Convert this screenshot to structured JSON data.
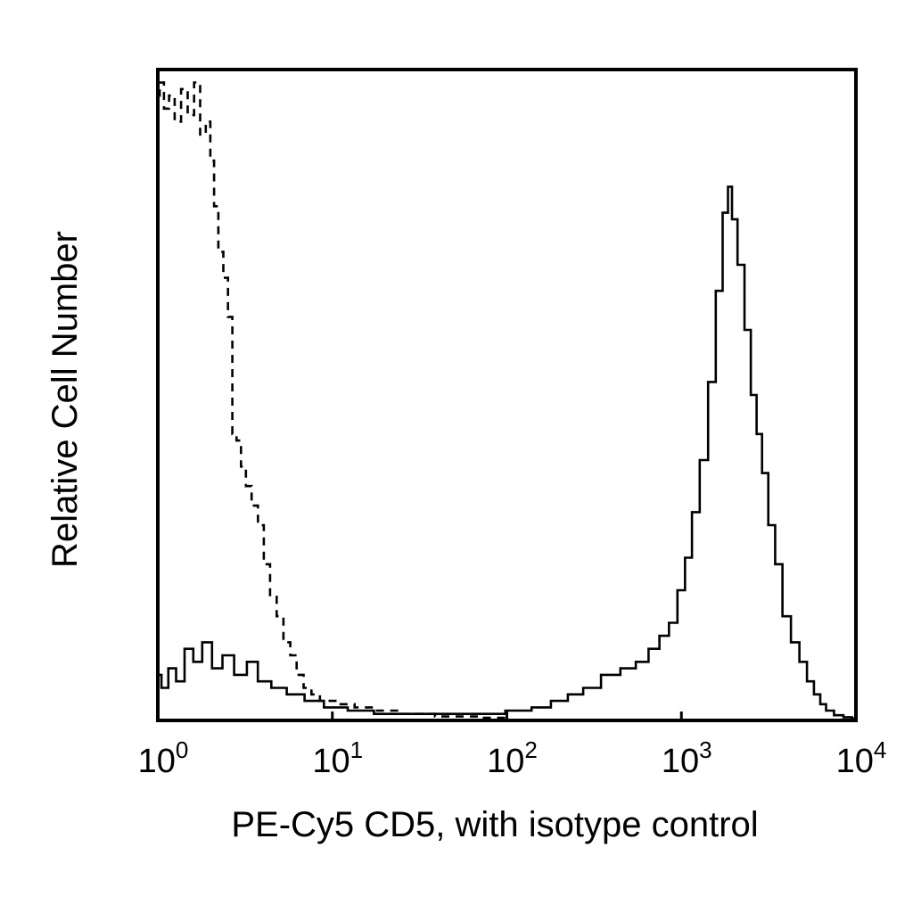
{
  "chart_data": {
    "type": "line",
    "x_scale": "log10",
    "xlim": [
      1,
      10000
    ],
    "ylim": [
      0,
      100
    ],
    "grid": false,
    "legend": "none",
    "xlabel": "PE-Cy5 CD5, with isotype control",
    "ylabel": "Relative Cell Number",
    "x_ticks": [
      {
        "base": "10",
        "exp": "0",
        "value": 1
      },
      {
        "base": "10",
        "exp": "1",
        "value": 10
      },
      {
        "base": "10",
        "exp": "2",
        "value": 100
      },
      {
        "base": "10",
        "exp": "3",
        "value": 1000
      },
      {
        "base": "10",
        "exp": "4",
        "value": 10000
      }
    ],
    "series": [
      {
        "style": "dashed",
        "x": [
          1.0,
          1.05,
          1.12,
          1.2,
          1.3,
          1.42,
          1.55,
          1.68,
          1.82,
          1.95,
          2.05,
          2.15,
          2.3,
          2.45,
          2.6,
          2.75,
          2.9,
          3.1,
          3.3,
          3.6,
          3.9,
          4.2,
          4.6,
          5.0,
          5.5,
          6.0,
          6.5,
          7.2,
          8.0,
          9.0,
          10.0,
          12.0,
          15.0,
          20.0,
          30.0,
          50.0,
          100.0
        ],
        "y": [
          96,
          98,
          94,
          96,
          92,
          97,
          93,
          98,
          90,
          92,
          86,
          79,
          72,
          68,
          62,
          44,
          43,
          39,
          36,
          33,
          30,
          24,
          19,
          16,
          12,
          10,
          7,
          5,
          4,
          3,
          3,
          2.5,
          2,
          1.5,
          1,
          0.6,
          0.4
        ]
      },
      {
        "style": "solid",
        "x": [
          1.0,
          1.1,
          1.2,
          1.35,
          1.5,
          1.7,
          1.9,
          2.2,
          2.5,
          3.0,
          3.5,
          4.0,
          5.0,
          6.0,
          8.0,
          10.0,
          15.0,
          20.0,
          30.0,
          50.0,
          80.0,
          120.0,
          160.0,
          200.0,
          250.0,
          300.0,
          400.0,
          500.0,
          600.0,
          700.0,
          800.0,
          900.0,
          1000.0,
          1100.0,
          1200.0,
          1350.0,
          1500.0,
          1650.0,
          1800.0,
          1900.0,
          2000.0,
          2200.0,
          2400.0,
          2600.0,
          2800.0,
          3000.0,
          3300.0,
          3600.0,
          4000.0,
          4500.0,
          5000.0,
          5500.0,
          6000.0,
          6500.0,
          7000.0,
          8000.0,
          9000.0,
          10000.0
        ],
        "y": [
          7,
          5,
          8,
          6,
          11,
          9,
          12,
          8,
          10,
          7,
          9,
          6,
          5,
          4,
          3,
          2,
          1.5,
          1,
          1,
          1,
          1,
          1.5,
          2,
          3,
          4,
          5,
          7,
          8,
          9,
          11,
          13,
          15,
          20,
          25,
          32,
          40,
          52,
          66,
          78,
          82,
          77,
          70,
          60,
          50,
          44,
          38,
          30,
          24,
          16,
          12,
          9,
          6,
          4,
          2.5,
          1.5,
          0.8,
          0.5,
          0.3
        ]
      }
    ]
  }
}
